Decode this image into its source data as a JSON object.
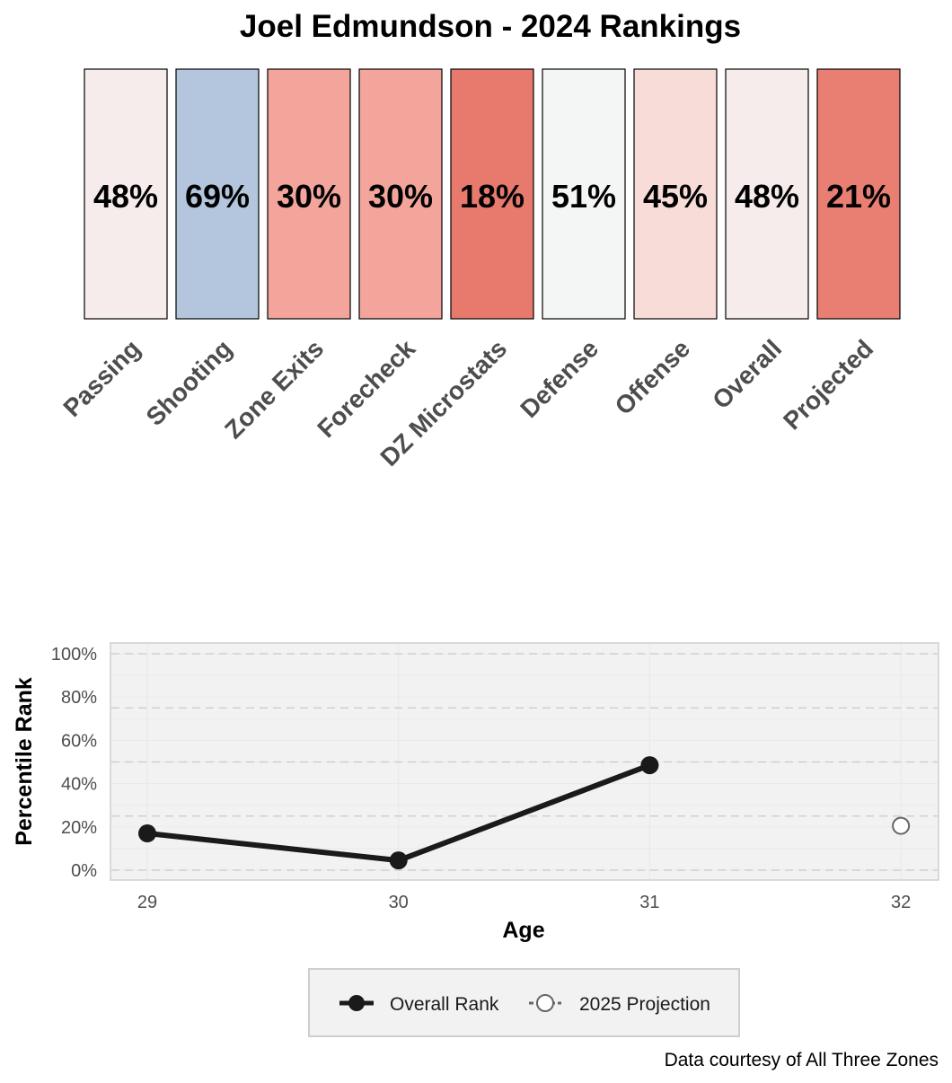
{
  "chart_data": [
    {
      "type": "heatmap",
      "title": "Joel Edmundson - 2024 Rankings",
      "categories": [
        "Passing",
        "Shooting",
        "Zone Exits",
        "Forecheck",
        "DZ Microstats",
        "Defense",
        "Offense",
        "Overall",
        "Projected"
      ],
      "values": [
        48,
        69,
        30,
        30,
        18,
        51,
        45,
        48,
        21
      ],
      "labels": [
        "48%",
        "69%",
        "30%",
        "30%",
        "18%",
        "51%",
        "45%",
        "48%",
        "21%"
      ],
      "colors": {
        "low": "#e8796d",
        "mid": "#f5f5f5",
        "high": "#b4c6de",
        "tiles": [
          "#f6eceb",
          "#b4c6de",
          "#f3a59b",
          "#f3a59b",
          "#e8796d",
          "#f4f5f5",
          "#f8dcd8",
          "#f6eceb",
          "#e97f73"
        ]
      }
    },
    {
      "type": "line",
      "xlabel": "Age",
      "ylabel": "Percentile Rank",
      "x_ticks": [
        "29",
        "30",
        "31",
        "32"
      ],
      "y_ticks": [
        "0%",
        "20%",
        "40%",
        "60%",
        "80%",
        "100%"
      ],
      "xlim": [
        29,
        32
      ],
      "ylim": [
        0,
        100
      ],
      "grid": true,
      "legend_position": "bottom",
      "series": [
        {
          "name": "Overall Rank",
          "x": [
            29,
            30,
            31
          ],
          "values": [
            17,
            4.5,
            48.5
          ],
          "color": "#1a1a1a",
          "marker": "filled-circle"
        },
        {
          "name": "2025 Projection",
          "x": [
            32
          ],
          "values": [
            20.5
          ],
          "color": "#666666",
          "marker": "open-circle"
        }
      ],
      "caption": "Data courtesy of All Three Zones"
    }
  ]
}
